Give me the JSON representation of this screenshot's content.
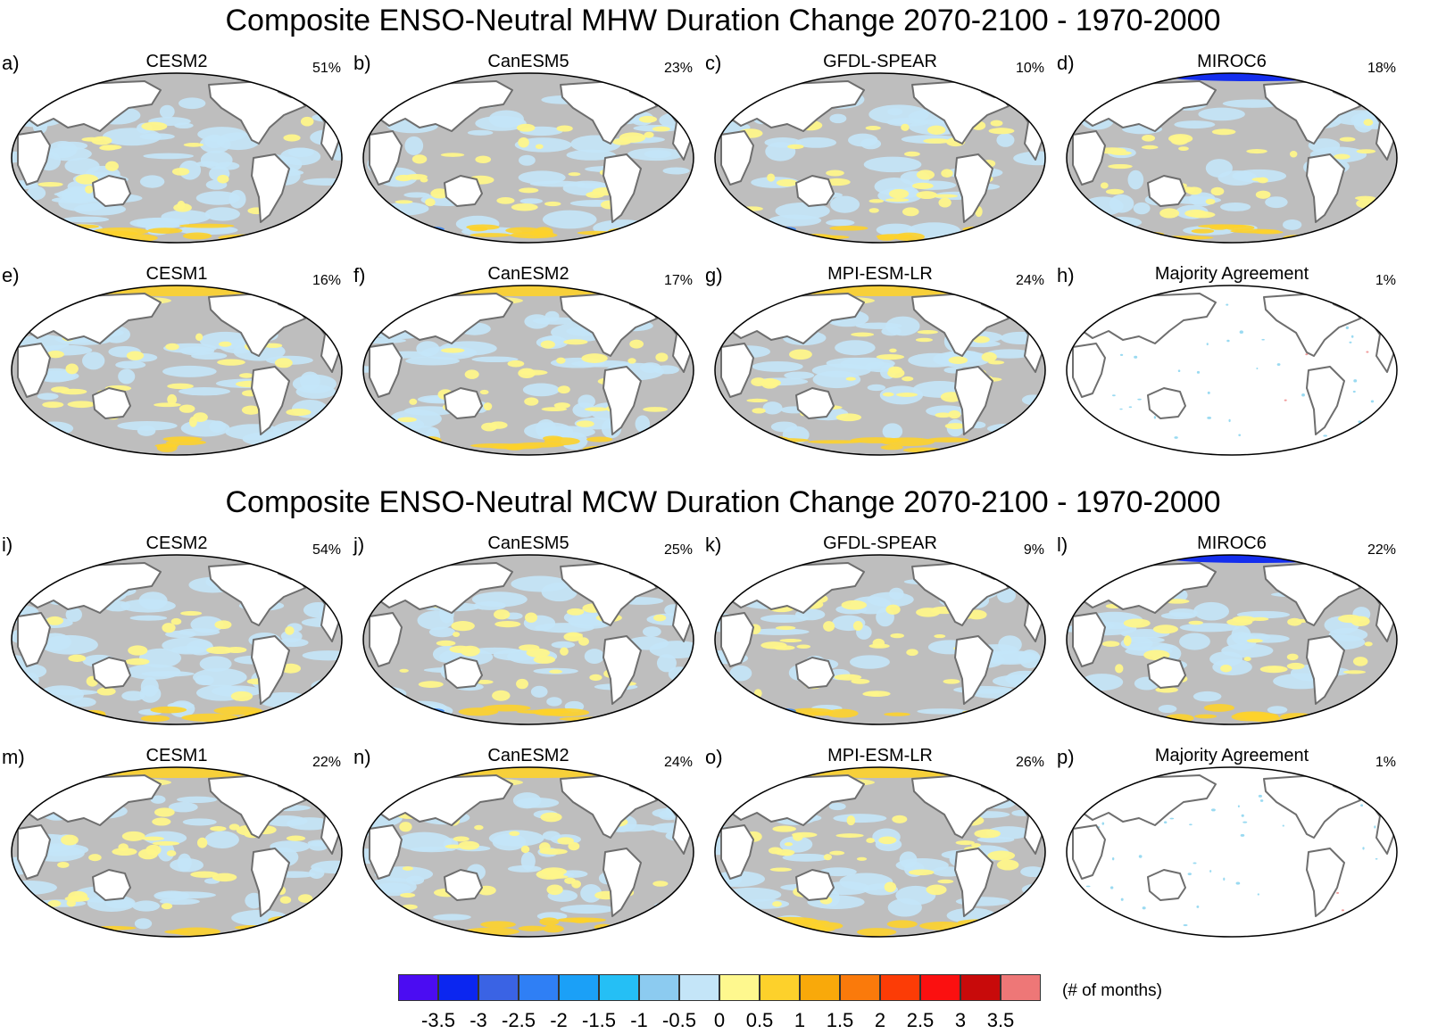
{
  "sections": [
    {
      "title": "Composite ENSO-Neutral MHW Duration Change 2070-2100 - 1970-2000",
      "panels": [
        {
          "label": "a)",
          "name": "CESM2",
          "pct": "51%",
          "style": "blueheavy"
        },
        {
          "label": "b)",
          "name": "CanESM5",
          "pct": "23%",
          "style": "mixed"
        },
        {
          "label": "c)",
          "name": "GFDL-SPEAR",
          "pct": "10%",
          "style": "mixed"
        },
        {
          "label": "d)",
          "name": "MIROC6",
          "pct": "18%",
          "style": "arcticblue"
        },
        {
          "label": "e)",
          "name": "CESM1",
          "pct": "16%",
          "style": "arcticyellow"
        },
        {
          "label": "f)",
          "name": "CanESM2",
          "pct": "17%",
          "style": "arcticyellow"
        },
        {
          "label": "g)",
          "name": "MPI-ESM-LR",
          "pct": "24%",
          "style": "arcticyellow"
        },
        {
          "label": "h)",
          "name": "Majority Agreement",
          "pct": "1%",
          "style": "sparse"
        }
      ]
    },
    {
      "title": "Composite ENSO-Neutral MCW Duration Change 2070-2100 - 1970-2000",
      "panels": [
        {
          "label": "i)",
          "name": "CESM2",
          "pct": "54%",
          "style": "blueheavy"
        },
        {
          "label": "j)",
          "name": "CanESM5",
          "pct": "25%",
          "style": "mixed"
        },
        {
          "label": "k)",
          "name": "GFDL-SPEAR",
          "pct": "9%",
          "style": "mixed"
        },
        {
          "label": "l)",
          "name": "MIROC6",
          "pct": "22%",
          "style": "arcticblue"
        },
        {
          "label": "m)",
          "name": "CESM1",
          "pct": "22%",
          "style": "arcticyellow"
        },
        {
          "label": "n)",
          "name": "CanESM2",
          "pct": "24%",
          "style": "arcticyellow"
        },
        {
          "label": "o)",
          "name": "MPI-ESM-LR",
          "pct": "26%",
          "style": "arcticyellow"
        },
        {
          "label": "p)",
          "name": "Majority Agreement",
          "pct": "1%",
          "style": "sparse"
        }
      ]
    }
  ],
  "colorbar": {
    "unit": "(# of months)",
    "ticks": [
      "-3.5",
      "-3",
      "-2.5",
      "-2",
      "-1.5",
      "-1",
      "-0.5",
      "0",
      "0.5",
      "1",
      "1.5",
      "2",
      "2.5",
      "3",
      "3.5"
    ],
    "colors": [
      "#4b0cf2",
      "#0b26f0",
      "#3a63e4",
      "#2f7ff5",
      "#1ba0f7",
      "#25bff5",
      "#8ccbf0",
      "#c4e5f8",
      "#fef88e",
      "#fdd12b",
      "#f9a90a",
      "#fa7a0b",
      "#fc3c06",
      "#fb1010",
      "#c80a0a",
      "#ee7777"
    ]
  },
  "palette": {
    "ocean_gray": "#bebebe",
    "light_blue": "#c4e5f8",
    "yellow": "#fef58a",
    "gold": "#fdd12b",
    "blue": "#2f7ff5",
    "dark_blue": "#0b26f0",
    "coastline": "#6e6e6e"
  }
}
